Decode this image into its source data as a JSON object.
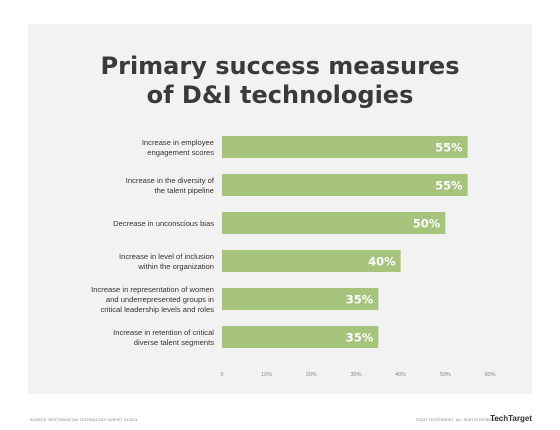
{
  "title_lines": [
    "Primary success measures",
    "of D&I technologies"
  ],
  "chart_data": {
    "type": "bar",
    "orientation": "horizontal",
    "categories": [
      [
        "Increase in employee",
        "engagement scores"
      ],
      [
        "Increase in the diversity of",
        "the talent pipeline"
      ],
      [
        "Decrease in unconscious bias"
      ],
      [
        "Increase in level of inclusion",
        "within the organization"
      ],
      [
        "Increase in representation of women",
        "and underrepresented groups in",
        "critical leadership levels and roles"
      ],
      [
        "Increase in retention of critical",
        "diverse talent segments"
      ]
    ],
    "values": [
      55,
      55,
      50,
      40,
      35,
      35
    ],
    "data_labels": [
      "55%",
      "55%",
      "50%",
      "40%",
      "35%",
      "35%"
    ],
    "xlim": [
      0,
      60
    ],
    "x_ticks": [
      0,
      10,
      20,
      30,
      40,
      50,
      60
    ],
    "x_tick_labels": [
      "0",
      "10%",
      "20%",
      "30%",
      "40%",
      "50%",
      "60%"
    ],
    "bar_color": "#a6c47c",
    "label_color": "#ffffff",
    "grid": false
  },
  "footer": {
    "source": "SOURCE: RESTORING D&I TECHNOLOGY SURVEY IN 2021",
    "rights": "©2022 TECHTARGET. ALL RIGHTS RESERVED",
    "brand": "TechTarget"
  }
}
